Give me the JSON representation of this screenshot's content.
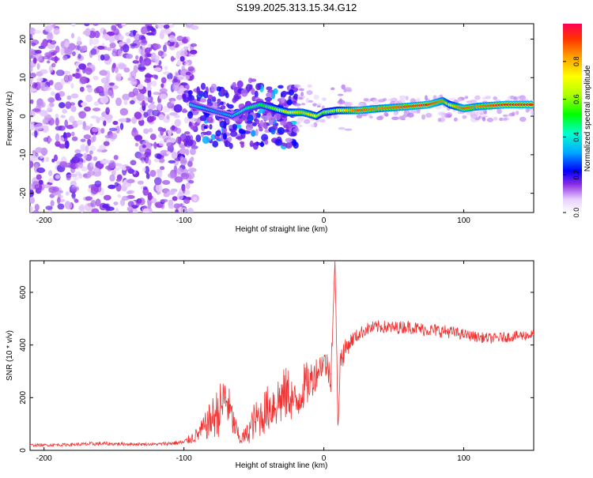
{
  "title": "S199.2025.313.15.34.G12",
  "chart_data": [
    {
      "type": "heatmap",
      "title": "S199.2025.313.15.34.G12",
      "xlabel": "Height of straight line (km)",
      "ylabel": "Frequency (Hz)",
      "xlim": [
        -210,
        150
      ],
      "ylim": [
        -25,
        24
      ],
      "xticks": [
        -200,
        -100,
        0,
        100
      ],
      "yticks": [
        -20,
        -10,
        0,
        10,
        20
      ],
      "colorbar": {
        "label": "Normalized spectral amplitude",
        "range": [
          0,
          1
        ],
        "ticks": [
          0.0,
          0.2,
          0.4,
          0.6,
          0.8
        ],
        "tick_labels": [
          "0.0",
          "0.2",
          "0.4",
          "0.6",
          "0.8"
        ]
      },
      "ridge": {
        "description": "dominant frequency line",
        "x": [
          -95,
          -85,
          -75,
          -65,
          -55,
          -45,
          -35,
          -25,
          -15,
          -5,
          0,
          10,
          25,
          40,
          60,
          75,
          80,
          85,
          90,
          100,
          110,
          130,
          150
        ],
        "y": [
          3,
          2,
          1,
          0,
          2,
          3,
          2,
          1,
          1,
          0,
          1,
          1.5,
          1.5,
          2,
          2.5,
          3,
          3.5,
          4,
          3,
          2,
          2.5,
          3,
          3
        ],
        "amplitude": [
          0.4,
          0.35,
          0.3,
          0.35,
          0.45,
          0.5,
          0.6,
          0.7,
          0.8,
          0.7,
          0.6,
          0.65,
          0.9,
          0.85,
          0.9,
          0.95,
          0.9,
          0.85,
          0.7,
          0.9,
          0.85,
          0.95,
          0.95
        ]
      }
    },
    {
      "type": "line",
      "xlabel": "Height of straight line (km)",
      "ylabel": "SNR (10 * v/v)",
      "xlim": [
        -210,
        150
      ],
      "ylim": [
        0,
        720
      ],
      "xticks": [
        -200,
        -100,
        0,
        100
      ],
      "yticks": [
        0,
        200,
        400,
        600
      ],
      "series": [
        {
          "name": "SNR",
          "color": "#ee3333",
          "x": [
            -210,
            -200,
            -180,
            -160,
            -140,
            -120,
            -100,
            -90,
            -85,
            -80,
            -75,
            -70,
            -65,
            -60,
            -55,
            -50,
            -45,
            -40,
            -35,
            -30,
            -25,
            -20,
            -15,
            -10,
            -5,
            0,
            5,
            8,
            10,
            12,
            15,
            20,
            25,
            30,
            40,
            50,
            60,
            70,
            80,
            90,
            100,
            110,
            120,
            130,
            140,
            150
          ],
          "values": [
            20,
            20,
            22,
            25,
            24,
            23,
            30,
            60,
            90,
            120,
            150,
            200,
            110,
            40,
            60,
            110,
            130,
            160,
            180,
            200,
            220,
            170,
            240,
            260,
            300,
            340,
            290,
            720,
            120,
            350,
            380,
            420,
            440,
            460,
            470,
            465,
            470,
            460,
            455,
            450,
            440,
            430,
            425,
            430,
            435,
            440
          ],
          "noise": [
            5,
            5,
            6,
            8,
            6,
            5,
            10,
            30,
            50,
            80,
            100,
            100,
            60,
            20,
            40,
            70,
            80,
            90,
            100,
            110,
            100,
            80,
            90,
            80,
            60,
            50,
            70,
            0,
            60,
            60,
            40,
            30,
            25,
            25,
            25,
            25,
            25,
            25,
            25,
            25,
            20,
            20,
            20,
            20,
            20,
            20
          ]
        }
      ]
    }
  ]
}
